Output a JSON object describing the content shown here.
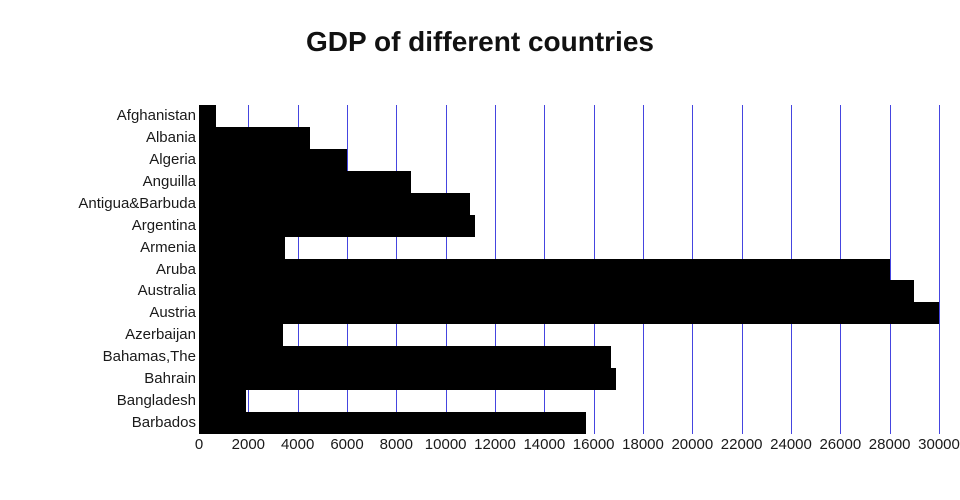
{
  "title": "GDP of different countries",
  "chart_data": {
    "type": "bar",
    "orientation": "horizontal",
    "title": "GDP of different countries",
    "categories": [
      "Afghanistan",
      "Albania",
      "Algeria",
      "Anguilla",
      "Antigua&Barbuda",
      "Argentina",
      "Armenia",
      "Aruba",
      "Australia",
      "Austria",
      "Azerbaijan",
      "Bahamas,The",
      "Bahrain",
      "Bangladesh",
      "Barbados"
    ],
    "values": [
      700,
      4500,
      6000,
      8600,
      11000,
      11200,
      3500,
      28000,
      29000,
      30000,
      3400,
      16700,
      16900,
      1900,
      15700
    ],
    "xlabel": "",
    "ylabel": "",
    "xlim": [
      0,
      30000
    ],
    "x_ticks": [
      0,
      2000,
      4000,
      6000,
      8000,
      10000,
      12000,
      14000,
      16000,
      18000,
      20000,
      22000,
      24000,
      26000,
      28000,
      30000
    ],
    "grid": "vertical",
    "bar_color": "#000000",
    "gridline_color": "#4545e0",
    "legend": "none"
  }
}
